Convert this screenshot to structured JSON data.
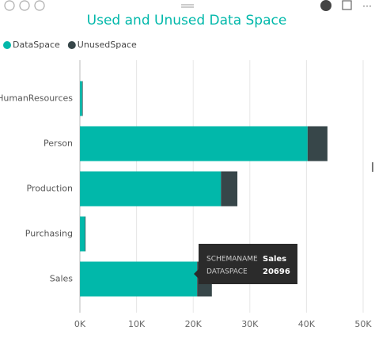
{
  "chart_data": {
    "type": "stacked_barh",
    "title": "Used and Unused Data Space",
    "categories": [
      "HumanResources",
      "Person",
      "Production",
      "Purchasing",
      "Sales"
    ],
    "series": [
      {
        "name": "DataSpace",
        "color": "#01B8AA",
        "values": [
          400,
          40200,
          24900,
          900,
          20696
        ]
      },
      {
        "name": "UnusedSpace",
        "color": "#374649",
        "values": [
          100,
          3500,
          2900,
          100,
          2600
        ]
      }
    ],
    "xlim": [
      0,
      50000
    ],
    "xticks": [
      {
        "value": 0,
        "label": "0K"
      },
      {
        "value": 10000,
        "label": "10K"
      },
      {
        "value": 20000,
        "label": "20K"
      },
      {
        "value": 30000,
        "label": "30K"
      },
      {
        "value": 40000,
        "label": "40K"
      },
      {
        "value": 50000,
        "label": "50K"
      }
    ],
    "grid": true,
    "legend": "top-left",
    "tooltip": {
      "category_label": "SCHEMANAME",
      "value_label": "DATASPACE"
    }
  }
}
